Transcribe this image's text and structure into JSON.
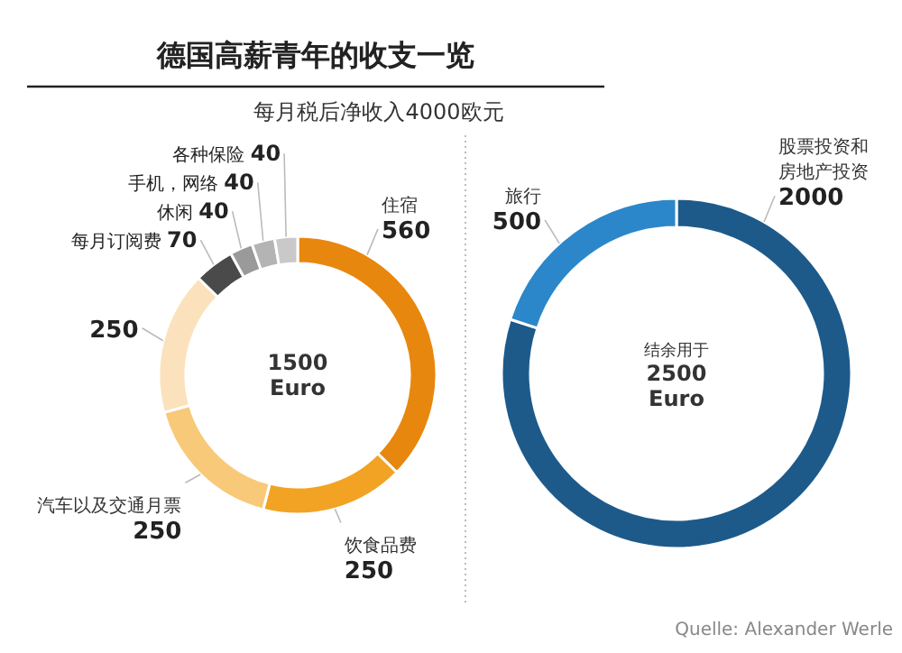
{
  "chart_data": [
    {
      "type": "donut",
      "title": "德国高薪青年的收支一览",
      "subtitle": "每月税后净收入4000欧元",
      "categories": [
        "住宿",
        "饮食品费",
        "汽车以及交通月票",
        null,
        "每月订阅费",
        "休闲",
        "手机，网络",
        "各种保险"
      ],
      "values": [
        560,
        250,
        250,
        250,
        70,
        40,
        40,
        40
      ],
      "colors": [
        "#e8870e",
        "#f2a324",
        "#f8c978",
        "#fbe2bd",
        "#4a4a4a",
        "#9a9a9a",
        "#b4b4b4",
        "#c9c9c9"
      ],
      "data_labels": true,
      "annotations": [
        "1500",
        "Euro"
      ]
    },
    {
      "type": "donut",
      "categories": [
        "股票投资和房地产投资",
        "旅行"
      ],
      "values": [
        2000,
        500
      ],
      "colors": [
        "#1d5a8a",
        "#2b87c9"
      ],
      "data_labels": true,
      "annotations": [
        "结余用于",
        "2500",
        "Euro",
        "Quelle: Alexander Werle"
      ]
    }
  ]
}
